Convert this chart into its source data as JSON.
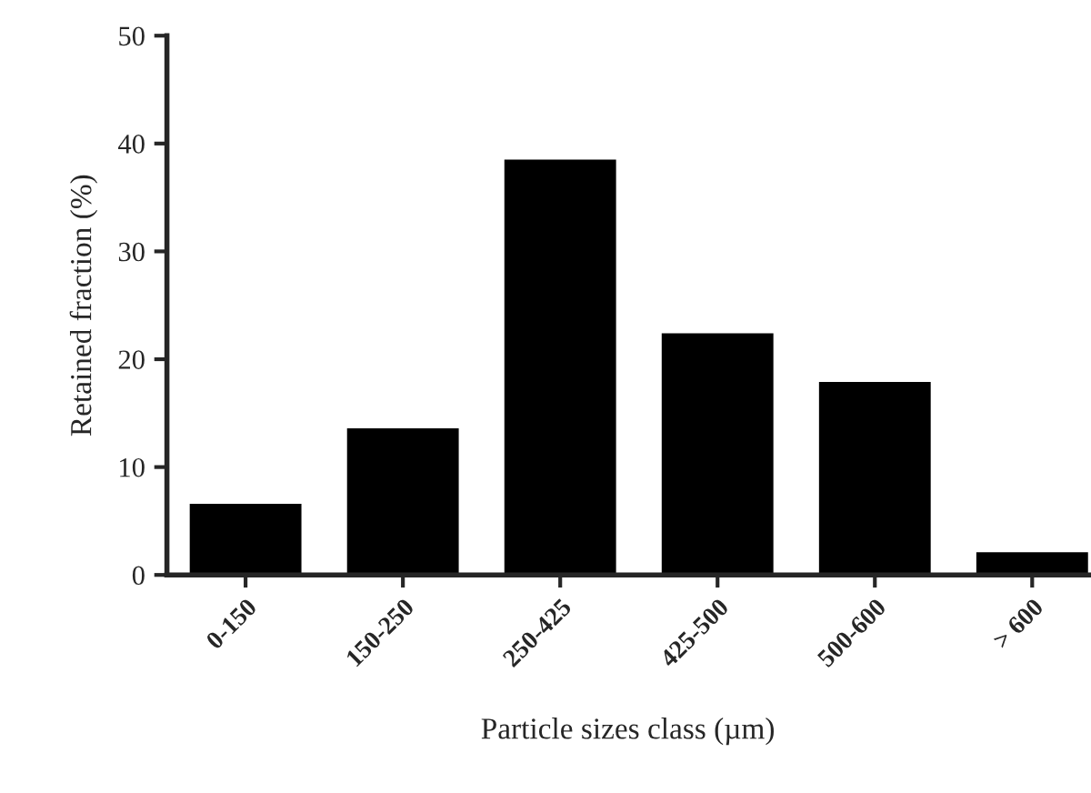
{
  "chart_data": {
    "type": "bar",
    "xlabel": "Particle sizes class (µm)",
    "ylabel": "Retained fraction (%)",
    "categories": [
      "0-150",
      "150-250",
      "250-425",
      "425-500",
      "500-600",
      "> 600"
    ],
    "values": [
      6.6,
      13.6,
      38.5,
      22.4,
      17.9,
      2.1
    ],
    "color": "#000000",
    "ylim": [
      0,
      50
    ],
    "yticks": [
      0,
      10,
      20,
      30,
      40,
      50
    ],
    "grid": false,
    "legend": false
  }
}
